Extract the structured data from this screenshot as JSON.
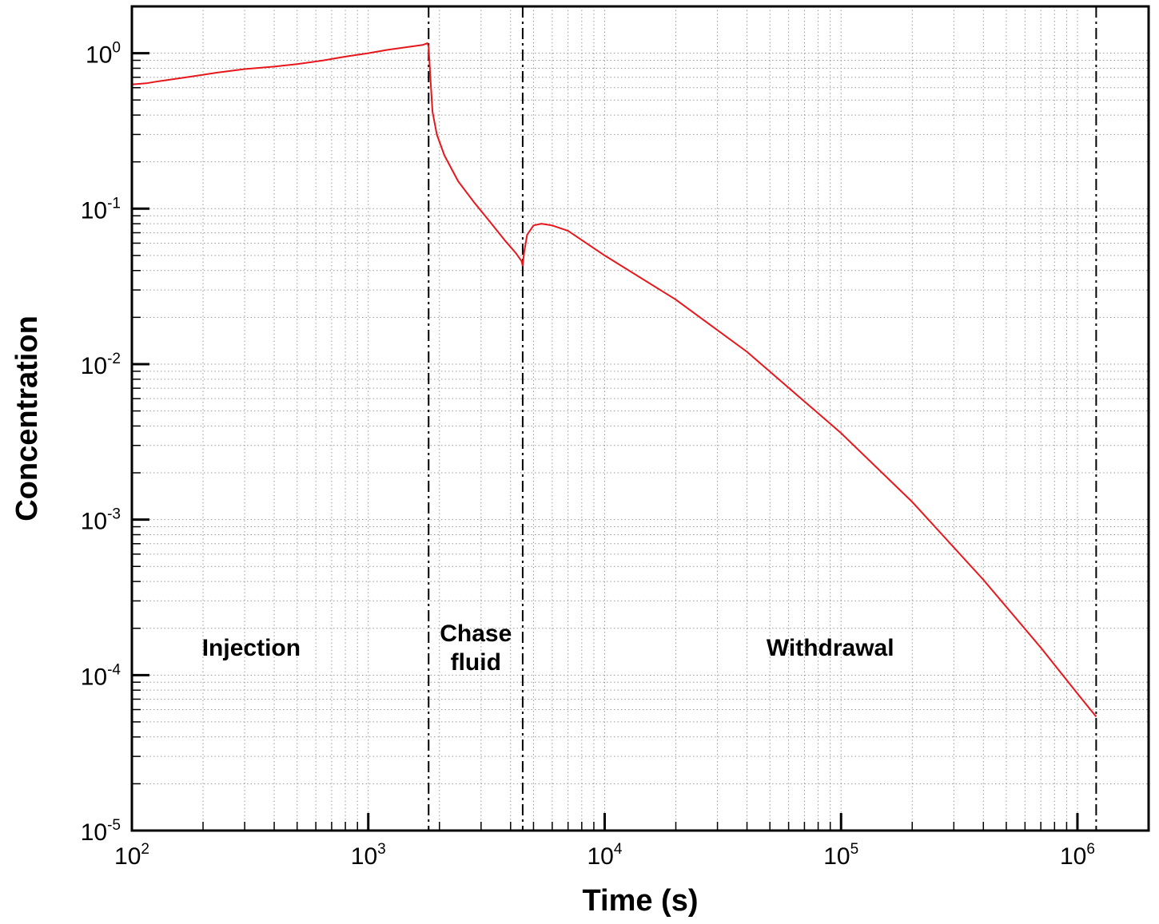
{
  "chart_data": {
    "type": "line",
    "title": "",
    "xlabel": "Time (s)",
    "ylabel": "Concentration",
    "x_scale": "log",
    "y_scale": "log",
    "xlim": [
      100,
      2000000
    ],
    "ylim": [
      1e-05,
      2
    ],
    "grid": true,
    "x_ticks": [
      {
        "base": "10",
        "exp": "2",
        "value": 100
      },
      {
        "base": "10",
        "exp": "3",
        "value": 1000
      },
      {
        "base": "10",
        "exp": "4",
        "value": 10000
      },
      {
        "base": "10",
        "exp": "5",
        "value": 100000
      },
      {
        "base": "10",
        "exp": "6",
        "value": 1000000
      }
    ],
    "y_ticks": [
      {
        "base": "10",
        "exp": "0",
        "value": 1
      },
      {
        "base": "10",
        "exp": "-1",
        "value": 0.1
      },
      {
        "base": "10",
        "exp": "-2",
        "value": 0.01
      },
      {
        "base": "10",
        "exp": "-3",
        "value": 0.001
      },
      {
        "base": "10",
        "exp": "-4",
        "value": 0.0001
      },
      {
        "base": "10",
        "exp": "-5",
        "value": 1e-05
      }
    ],
    "phase_boundaries": [
      1800,
      4500,
      1200000
    ],
    "regions": [
      {
        "lines": [
          "Injection"
        ],
        "x_center": 320,
        "y": 0.00015
      },
      {
        "lines": [
          "Chase",
          "fluid"
        ],
        "x_center": 2850,
        "y": 0.00015
      },
      {
        "lines": [
          "Withdrawal"
        ],
        "x_center": 90000,
        "y": 0.00015
      }
    ],
    "series": [
      {
        "color": "#e8161b",
        "points": [
          [
            100,
            0.63
          ],
          [
            115,
            0.64
          ],
          [
            130,
            0.66
          ],
          [
            170,
            0.7
          ],
          [
            230,
            0.75
          ],
          [
            300,
            0.79
          ],
          [
            400,
            0.82
          ],
          [
            500,
            0.85
          ],
          [
            650,
            0.9
          ],
          [
            800,
            0.95
          ],
          [
            1000,
            1.0
          ],
          [
            1200,
            1.05
          ],
          [
            1500,
            1.1
          ],
          [
            1700,
            1.13
          ],
          [
            1780,
            1.16
          ],
          [
            1800,
            1.1
          ],
          [
            1830,
            0.7
          ],
          [
            1870,
            0.42
          ],
          [
            1950,
            0.3
          ],
          [
            2100,
            0.22
          ],
          [
            2400,
            0.15
          ],
          [
            2800,
            0.11
          ],
          [
            3300,
            0.081
          ],
          [
            3800,
            0.062
          ],
          [
            4200,
            0.052
          ],
          [
            4450,
            0.046
          ],
          [
            4500,
            0.043
          ],
          [
            4560,
            0.052
          ],
          [
            4700,
            0.068
          ],
          [
            5000,
            0.078
          ],
          [
            5400,
            0.08
          ],
          [
            6000,
            0.078
          ],
          [
            7000,
            0.072
          ],
          [
            10000,
            0.05
          ],
          [
            20000,
            0.026
          ],
          [
            40000,
            0.012
          ],
          [
            100000,
            0.0036
          ],
          [
            200000,
            0.0013
          ],
          [
            400000,
            0.00041
          ],
          [
            700000,
            0.00015
          ],
          [
            1000000,
            7.6e-05
          ],
          [
            1200000,
            5.4e-05
          ]
        ]
      }
    ]
  }
}
